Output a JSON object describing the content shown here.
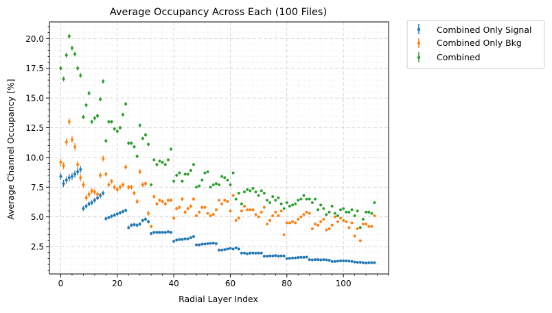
{
  "chart_data": {
    "type": "scatter",
    "title": "Average Occupancy Across Each  (100 Files)",
    "xlabel": "Radial Layer Index",
    "ylabel": "Average Channel Occupancy [%]",
    "xlim": [
      -4,
      116
    ],
    "ylim": [
      0.2,
      21.4
    ],
    "xticks": [
      0,
      20,
      40,
      60,
      80,
      100
    ],
    "yticks": [
      2.5,
      5.0,
      7.5,
      10.0,
      12.5,
      15.0,
      17.5,
      20.0
    ],
    "ytick_labels": [
      "2.5",
      "5.0",
      "7.5",
      "10.0",
      "12.5",
      "15.0",
      "17.5",
      "20.0"
    ],
    "grid": true,
    "minor_grid": true,
    "legend_position": "outside-top-right",
    "x": [
      0,
      1,
      2,
      3,
      4,
      5,
      6,
      7,
      8,
      9,
      10,
      11,
      12,
      13,
      14,
      15,
      16,
      17,
      18,
      19,
      20,
      21,
      22,
      23,
      24,
      25,
      26,
      27,
      28,
      29,
      30,
      31,
      32,
      33,
      34,
      35,
      36,
      37,
      38,
      39,
      40,
      41,
      42,
      43,
      44,
      45,
      46,
      47,
      48,
      49,
      50,
      51,
      52,
      53,
      54,
      55,
      56,
      57,
      58,
      59,
      60,
      61,
      62,
      63,
      64,
      65,
      66,
      67,
      68,
      69,
      70,
      71,
      72,
      73,
      74,
      75,
      76,
      77,
      78,
      79,
      80,
      81,
      82,
      83,
      84,
      85,
      86,
      87,
      88,
      89,
      90,
      91,
      92,
      93,
      94,
      95,
      96,
      97,
      98,
      99,
      100,
      101,
      102,
      103,
      104,
      105,
      106,
      107,
      108,
      109,
      110,
      111
    ],
    "series": [
      {
        "name": "Combined Only Signal",
        "color": "#1f77b4",
        "values": [
          8.4,
          7.8,
          8.1,
          8.3,
          8.4,
          8.6,
          8.8,
          9.0,
          5.7,
          5.9,
          6.1,
          6.2,
          6.4,
          6.6,
          6.8,
          7.0,
          4.85,
          4.95,
          5.05,
          5.15,
          5.25,
          5.35,
          5.45,
          5.55,
          4.1,
          4.3,
          4.35,
          4.3,
          4.4,
          4.7,
          4.8,
          4.6,
          3.6,
          3.7,
          3.7,
          3.7,
          3.7,
          3.7,
          3.75,
          3.7,
          2.95,
          3.05,
          3.1,
          3.1,
          3.15,
          3.15,
          3.25,
          3.35,
          2.65,
          2.65,
          2.7,
          2.72,
          2.75,
          2.78,
          2.8,
          2.75,
          2.2,
          2.2,
          2.25,
          2.3,
          2.35,
          2.3,
          2.4,
          2.3,
          1.95,
          1.95,
          1.9,
          1.95,
          1.95,
          1.95,
          1.95,
          1.95,
          1.7,
          1.7,
          1.72,
          1.72,
          1.75,
          1.7,
          1.72,
          1.72,
          1.5,
          1.52,
          1.55,
          1.55,
          1.58,
          1.6,
          1.6,
          1.62,
          1.4,
          1.38,
          1.4,
          1.4,
          1.38,
          1.4,
          1.38,
          1.35,
          1.25,
          1.25,
          1.28,
          1.3,
          1.3,
          1.3,
          1.28,
          1.25,
          1.2,
          1.18,
          1.18,
          1.15,
          1.12,
          1.15,
          1.15,
          1.15
        ],
        "errors": [
          0.3,
          0.3,
          0.3,
          0.3,
          0.3,
          0.3,
          0.3,
          0.3,
          0.2,
          0.2,
          0.2,
          0.2,
          0.2,
          0.2,
          0.2,
          0.2,
          0.15,
          0.15,
          0.15,
          0.15,
          0.15,
          0.15,
          0.15,
          0.15,
          0.15,
          0.15,
          0.15,
          0.15,
          0.15,
          0.15,
          0.15,
          0.15,
          0.12,
          0.12,
          0.12,
          0.12,
          0.12,
          0.12,
          0.12,
          0.12,
          0.12,
          0.12,
          0.12,
          0.12,
          0.12,
          0.12,
          0.12,
          0.12,
          0.1,
          0.1,
          0.1,
          0.1,
          0.1,
          0.1,
          0.1,
          0.1,
          0.1,
          0.1,
          0.1,
          0.1,
          0.1,
          0.1,
          0.1,
          0.1,
          0.08,
          0.08,
          0.08,
          0.08,
          0.08,
          0.08,
          0.08,
          0.08,
          0.08,
          0.08,
          0.08,
          0.08,
          0.08,
          0.08,
          0.08,
          0.08,
          0.07,
          0.07,
          0.07,
          0.07,
          0.07,
          0.07,
          0.07,
          0.07,
          0.07,
          0.07,
          0.07,
          0.07,
          0.07,
          0.07,
          0.07,
          0.07,
          0.07,
          0.07,
          0.07,
          0.07,
          0.07,
          0.07,
          0.07,
          0.07,
          0.07,
          0.07,
          0.07,
          0.07,
          0.07,
          0.07,
          0.07,
          0.07
        ]
      },
      {
        "name": "Combined Only Bkg",
        "color": "#ff7f0e",
        "values": [
          9.6,
          9.3,
          11.3,
          13.0,
          11.5,
          10.9,
          9.4,
          8.3,
          7.7,
          6.6,
          6.9,
          7.2,
          7.1,
          6.9,
          8.5,
          9.9,
          8.6,
          7.7,
          8.0,
          7.5,
          7.3,
          7.5,
          7.7,
          9.2,
          7.5,
          7.5,
          7.0,
          6.3,
          8.8,
          7.7,
          7.8,
          5.3,
          4.2,
          6.7,
          6.1,
          6.4,
          6.3,
          6.1,
          6.4,
          6.4,
          4.9,
          5.7,
          5.8,
          6.5,
          5.4,
          5.7,
          5.9,
          6.5,
          5.1,
          5.4,
          5.8,
          5.8,
          5.3,
          5.1,
          5.2,
          5.6,
          6.4,
          6.1,
          6.4,
          6.3,
          5.5,
          6.8,
          4.7,
          4.9,
          5.5,
          5.9,
          5.6,
          5.6,
          5.6,
          5.2,
          5.0,
          5.4,
          5.8,
          4.4,
          4.7,
          5.1,
          5.4,
          5.1,
          5.5,
          3.5,
          4.5,
          4.5,
          4.6,
          4.5,
          4.8,
          5.0,
          5.2,
          5.4,
          5.3,
          4.0,
          4.4,
          4.3,
          4.6,
          4.8,
          3.9,
          4.0,
          4.3,
          5.0,
          4.6,
          4.9,
          4.7,
          4.6,
          4.1,
          4.5,
          3.4,
          4.0,
          3.0,
          4.4,
          4.4,
          4.2,
          4.2,
          5.1
        ],
        "errors": [
          0.3,
          0.3,
          0.3,
          0.3,
          0.3,
          0.3,
          0.3,
          0.3,
          0.25,
          0.25,
          0.25,
          0.25,
          0.25,
          0.25,
          0.25,
          0.25,
          0.2,
          0.2,
          0.2,
          0.2,
          0.2,
          0.2,
          0.2,
          0.2,
          0.2,
          0.2,
          0.2,
          0.2,
          0.2,
          0.2,
          0.2,
          0.2,
          0.15,
          0.15,
          0.15,
          0.15,
          0.15,
          0.15,
          0.15,
          0.15,
          0.15,
          0.15,
          0.15,
          0.15,
          0.15,
          0.15,
          0.15,
          0.15,
          0.12,
          0.12,
          0.12,
          0.12,
          0.12,
          0.12,
          0.12,
          0.12,
          0.12,
          0.12,
          0.12,
          0.12,
          0.12,
          0.12,
          0.12,
          0.12,
          0.1,
          0.1,
          0.1,
          0.1,
          0.1,
          0.1,
          0.1,
          0.1,
          0.1,
          0.1,
          0.1,
          0.1,
          0.1,
          0.1,
          0.1,
          0.1,
          0.1,
          0.1,
          0.1,
          0.1,
          0.1,
          0.1,
          0.1,
          0.1,
          0.1,
          0.1,
          0.1,
          0.1,
          0.1,
          0.1,
          0.1,
          0.1,
          0.1,
          0.1,
          0.1,
          0.1,
          0.1,
          0.1,
          0.1,
          0.1,
          0.1,
          0.1,
          0.1,
          0.1,
          0.1,
          0.1,
          0.1,
          0.1
        ]
      },
      {
        "name": "Combined",
        "color": "#2ca02c",
        "values": [
          17.5,
          16.6,
          18.6,
          20.2,
          19.2,
          18.7,
          17.5,
          16.9,
          13.4,
          14.4,
          15.4,
          13.0,
          13.3,
          13.5,
          14.9,
          16.4,
          11.4,
          13.0,
          13.0,
          12.4,
          12.2,
          12.5,
          13.6,
          14.5,
          11.2,
          11.2,
          10.9,
          10.1,
          12.7,
          11.6,
          11.9,
          11.1,
          7.7,
          9.8,
          9.4,
          9.7,
          9.6,
          9.4,
          9.8,
          10.7,
          8.0,
          8.5,
          8.7,
          8.0,
          8.6,
          8.6,
          8.9,
          9.4,
          7.5,
          7.6,
          8.1,
          8.7,
          8.8,
          7.5,
          7.7,
          7.8,
          7.7,
          8.4,
          8.3,
          8.1,
          7.7,
          8.7,
          6.5,
          7.0,
          6.1,
          7.1,
          7.3,
          7.2,
          7.4,
          7.1,
          6.8,
          7.2,
          7.0,
          6.4,
          6.2,
          6.7,
          6.4,
          6.6,
          6.1,
          5.7,
          6.2,
          5.9,
          6.0,
          6.1,
          6.4,
          6.5,
          6.8,
          6.5,
          6.5,
          6.2,
          6.5,
          5.6,
          6.0,
          5.7,
          5.2,
          5.4,
          5.9,
          5.3,
          5.1,
          5.6,
          5.7,
          5.4,
          5.4,
          5.6,
          5.1,
          5.5,
          4.1,
          4.8,
          5.4,
          5.4,
          5.3,
          6.2
        ],
        "errors": [
          0.2,
          0.2,
          0.2,
          0.2,
          0.2,
          0.2,
          0.2,
          0.2,
          0.18,
          0.18,
          0.18,
          0.18,
          0.18,
          0.18,
          0.18,
          0.18,
          0.15,
          0.15,
          0.15,
          0.15,
          0.15,
          0.15,
          0.15,
          0.15,
          0.15,
          0.15,
          0.15,
          0.15,
          0.15,
          0.15,
          0.15,
          0.15,
          0.12,
          0.12,
          0.12,
          0.12,
          0.12,
          0.12,
          0.12,
          0.12,
          0.12,
          0.12,
          0.12,
          0.12,
          0.12,
          0.12,
          0.12,
          0.12,
          0.1,
          0.1,
          0.1,
          0.1,
          0.1,
          0.1,
          0.1,
          0.1,
          0.1,
          0.1,
          0.1,
          0.1,
          0.1,
          0.1,
          0.1,
          0.1,
          0.1,
          0.1,
          0.1,
          0.1,
          0.1,
          0.1,
          0.1,
          0.1,
          0.1,
          0.1,
          0.1,
          0.1,
          0.1,
          0.1,
          0.1,
          0.1,
          0.1,
          0.1,
          0.1,
          0.1,
          0.1,
          0.1,
          0.1,
          0.1,
          0.1,
          0.1,
          0.1,
          0.1,
          0.1,
          0.1,
          0.1,
          0.1,
          0.1,
          0.1,
          0.1,
          0.1,
          0.1,
          0.1,
          0.1,
          0.1,
          0.1,
          0.1,
          0.1,
          0.1,
          0.1,
          0.1,
          0.1,
          0.1
        ]
      }
    ]
  }
}
